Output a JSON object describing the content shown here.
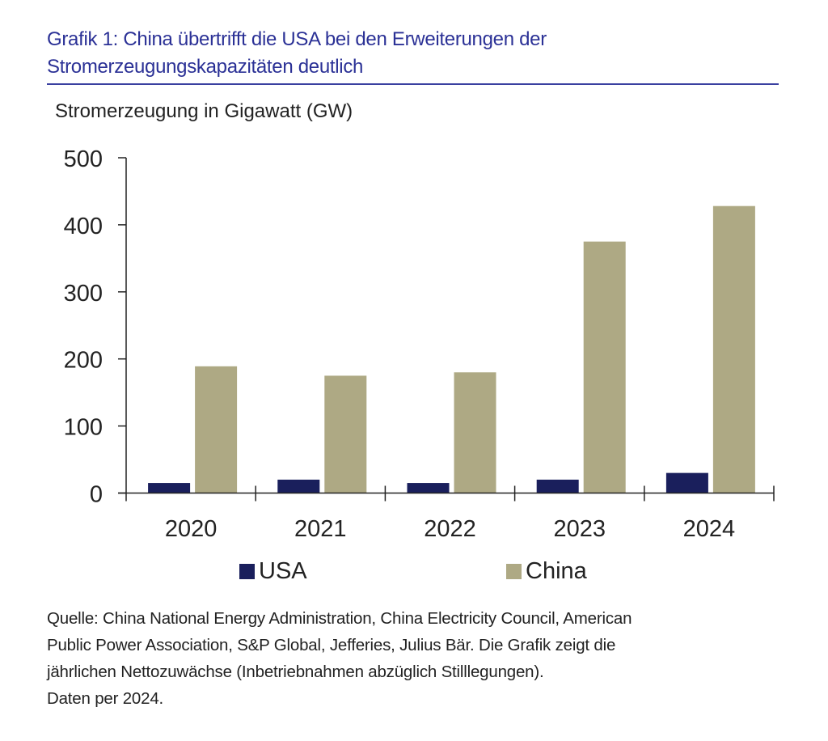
{
  "header": {
    "title_line1": "Grafik 1: China übertrifft die USA bei den Erweiterungen der",
    "title_line2": "Stromerzeugungskapazitäten deutlich"
  },
  "footer": {
    "line1": "Quelle: China National Energy Administration, China Electricity Council, American",
    "line2": "Public Power Association, S&P Global, Jefferies, Julius Bär. Die Grafik zeigt die",
    "line3": "jährlichen Nettozuwächse (Inbetriebnahmen abzüglich Stilllegungen).",
    "line4": "Daten per 2024."
  },
  "colors": {
    "title": "#2b3196",
    "usa": "#1a1f5c",
    "china": "#aea984",
    "axis": "#222222"
  },
  "chart_data": {
    "type": "bar",
    "title": "Grafik 1: China übertrifft die USA bei den Erweiterungen der Stromerzeugungskapazitäten deutlich",
    "ylabel": "Stromerzeugung in Gigawatt (GW)",
    "xlabel": "",
    "categories": [
      "2020",
      "2021",
      "2022",
      "2023",
      "2024"
    ],
    "ylim": [
      0,
      500
    ],
    "yticks": [
      "0",
      "100",
      "200",
      "300",
      "400",
      "500"
    ],
    "grid": false,
    "legend_position": "bottom",
    "series": [
      {
        "name": "USA",
        "color": "#1a1f5c",
        "values": [
          15,
          20,
          15,
          20,
          30
        ]
      },
      {
        "name": "China",
        "color": "#aea984",
        "values": [
          189,
          175,
          180,
          375,
          428
        ]
      }
    ]
  }
}
